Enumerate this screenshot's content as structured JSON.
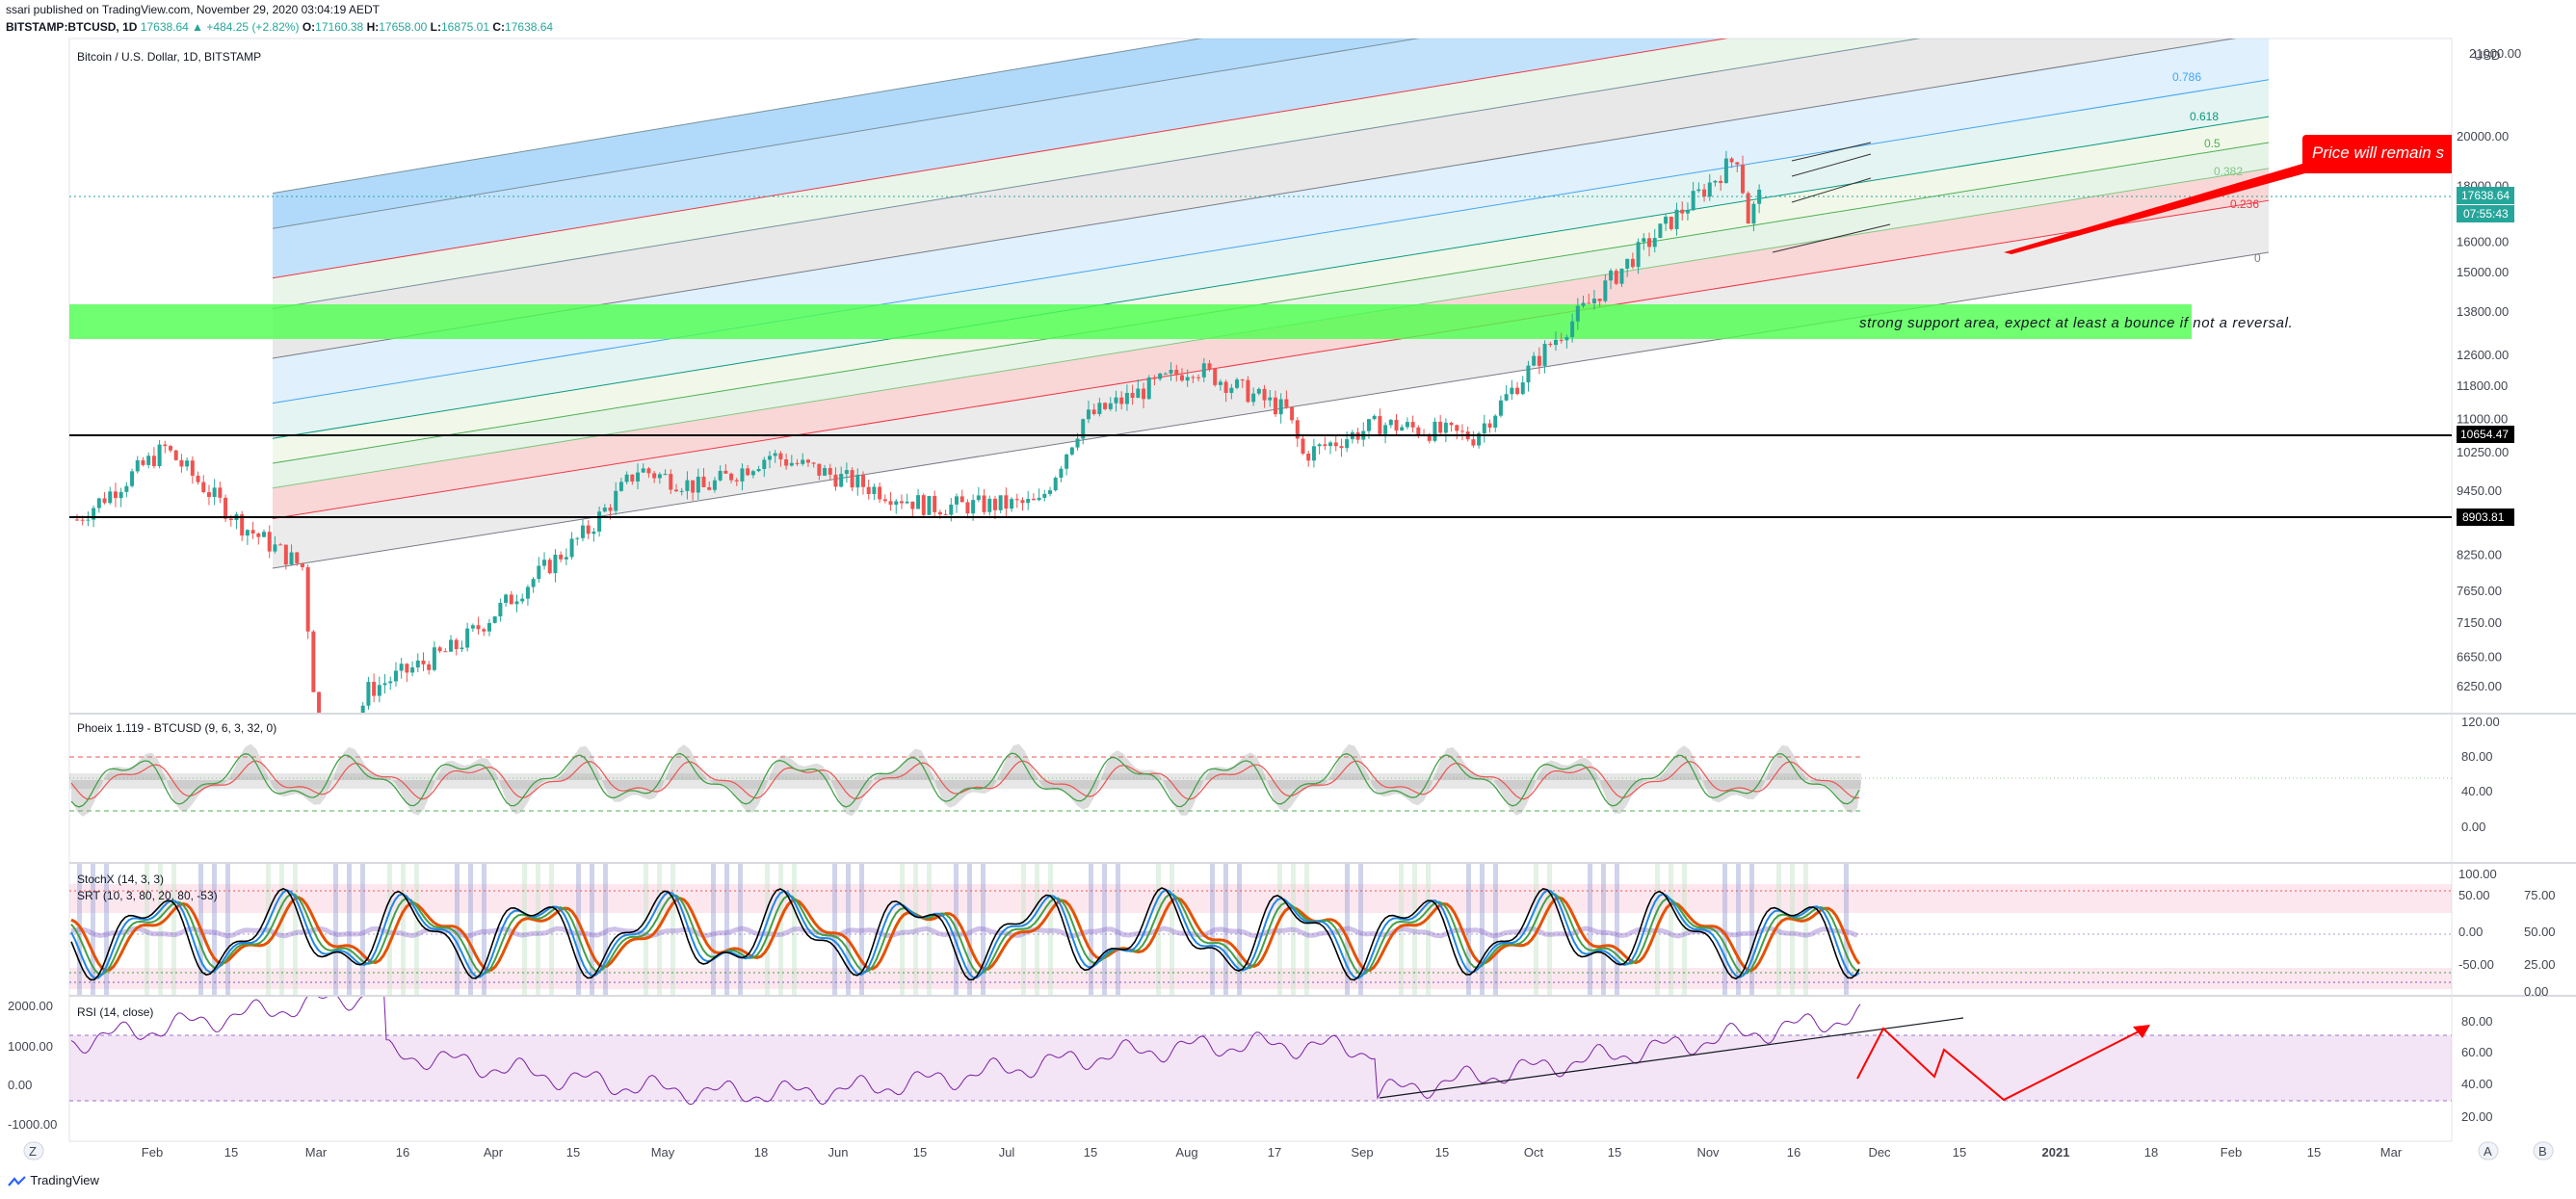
{
  "header": {
    "published": "ssari published on TradingView.com, November 29, 2020 03:04:19 AEDT",
    "symbol": "BITSTAMP:BTCUSD, 1D",
    "change": "17638.64 ▲ +484.25 (+2.82%)",
    "o_label": "O:",
    "o": "17160.38",
    "h_label": "H:",
    "h": "17658.00",
    "l_label": "L:",
    "l": "16875.01",
    "c_label": "C:",
    "c": "17638.64"
  },
  "main": {
    "title": "Bitcoin / U.S. Dollar, 1D, BITSTAMP",
    "currency": "USD",
    "price_ticks": [
      "20000.00",
      "18000.00",
      "16000.00",
      "15000.00",
      "13800.00",
      "12600.00",
      "11800.00",
      "11000.00",
      "10250.00",
      "9450.00",
      "8250.00",
      "7650.00",
      "7150.00",
      "6650.00",
      "6250.00"
    ],
    "top_tick": "21000.00",
    "fib_labels": [
      {
        "label": "0.786",
        "color": "#42a5f5"
      },
      {
        "label": "0.618",
        "color": "#089981"
      },
      {
        "label": "0.5",
        "color": "#4caf50"
      },
      {
        "label": "0.382",
        "color": "#81c784"
      },
      {
        "label": "0.236",
        "color": "#f23645"
      },
      {
        "label": "0",
        "color": "#787b86"
      }
    ],
    "current_price": "17638.64",
    "countdown": "07:55:43",
    "level_1": "10654.47",
    "level_2": "8903.81",
    "annotation_support": "strong support area, expect at least a bounce if not a reversal.",
    "annotation_callout": "Price will remain s",
    "colors": {
      "up": "#26a69a",
      "down": "#ef5350",
      "support": "#4cff4c",
      "callout": "#ff0000"
    }
  },
  "phoeix": {
    "title": "Phoeix 1.119 - BTCUSD (9, 6, 3, 32, 0)",
    "ticks": [
      "120.00",
      "80.00",
      "40.00",
      "0.00"
    ]
  },
  "stochx": {
    "title": "StochX (14, 3, 3)",
    "subtitle": "SRT (10, 3, 80, 20, 80, -53)",
    "ticks_left": [
      "100.00",
      "50.00",
      "0.00",
      "-50.00"
    ],
    "ticks_right": [
      "75.00",
      "50.00",
      "25.00",
      "0.00"
    ]
  },
  "rsi": {
    "title": "RSI (14, close)",
    "ticks_left": [
      "2000.00",
      "1000.00",
      "0.00",
      "-1000.00"
    ],
    "ticks_right": [
      "80.00",
      "60.00",
      "40.00",
      "20.00"
    ]
  },
  "time_axis": {
    "labels": [
      "Feb",
      "15",
      "Mar",
      "16",
      "Apr",
      "15",
      "May",
      "18",
      "Jun",
      "15",
      "Jul",
      "15",
      "Aug",
      "17",
      "Sep",
      "15",
      "Oct",
      "15",
      "Nov",
      "16",
      "Dec",
      "15",
      "2021",
      "18",
      "Feb",
      "15",
      "Mar"
    ],
    "left_btn": "Z",
    "right_btn": "A",
    "far_right_btn": "B"
  },
  "footer": {
    "brand": "TradingView"
  },
  "chart_data": {
    "type": "candlestick",
    "title": "Bitcoin / U.S. Dollar, 1D, BITSTAMP",
    "ylabel": "USD",
    "y_scale": "log",
    "ylim": [
      6000,
      21500
    ],
    "x_range": [
      "2020-01-27",
      "2021-03-31"
    ],
    "levels": [
      10654.47,
      8903.81
    ],
    "last": {
      "open": 17160.38,
      "high": 17658.0,
      "low": 16875.01,
      "close": 17638.64,
      "change": 484.25,
      "change_pct": 2.82
    },
    "anchor_closes": [
      [
        "2020-01-27",
        8900
      ],
      [
        "2020-02-12",
        10350
      ],
      [
        "2020-02-26",
        8800
      ],
      [
        "2020-03-08",
        8050
      ],
      [
        "2020-03-12",
        4900
      ],
      [
        "2020-03-20",
        6200
      ],
      [
        "2020-04-05",
        6800
      ],
      [
        "2020-04-29",
        8700
      ],
      [
        "2020-05-08",
        9900
      ],
      [
        "2020-05-20",
        9500
      ],
      [
        "2020-06-01",
        10200
      ],
      [
        "2020-06-30",
        9150
      ],
      [
        "2020-07-20",
        9200
      ],
      [
        "2020-07-28",
        11000
      ],
      [
        "2020-08-17",
        12300
      ],
      [
        "2020-09-03",
        11200
      ],
      [
        "2020-09-06",
        10200
      ],
      [
        "2020-09-20",
        10900
      ],
      [
        "2020-10-07",
        10600
      ],
      [
        "2020-10-21",
        12900
      ],
      [
        "2020-11-05",
        15500
      ],
      [
        "2020-11-17",
        17700
      ],
      [
        "2020-11-24",
        19200
      ],
      [
        "2020-11-26",
        16800
      ],
      [
        "2020-11-28",
        17638.64
      ]
    ],
    "support_zone": [
      12900,
      14000
    ],
    "fib_channel_levels": [
      0,
      0.236,
      0.382,
      0.5,
      0.618,
      0.786
    ],
    "indicators": {
      "phoeix_levels": [
        80,
        40
      ],
      "rsi_period": 14,
      "stoch": [
        14,
        3,
        3
      ]
    }
  }
}
